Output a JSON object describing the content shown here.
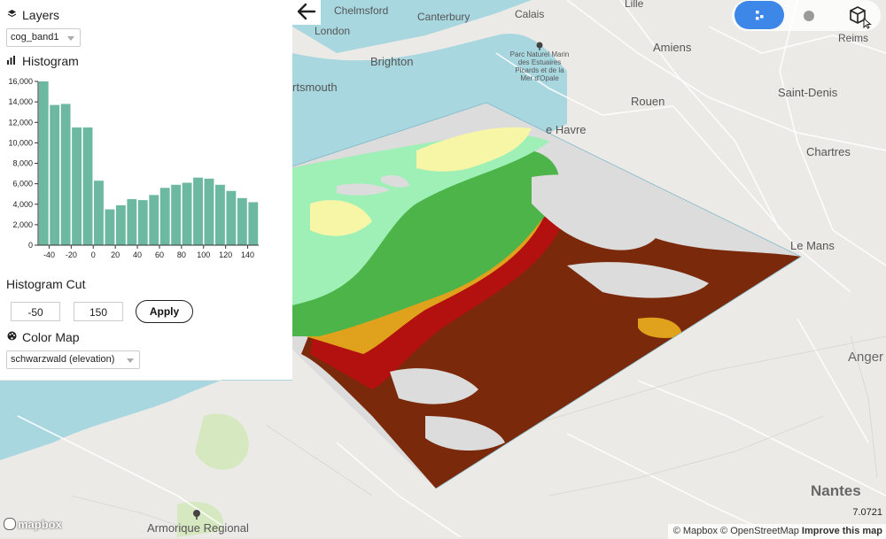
{
  "panel": {
    "layers_title": "Layers",
    "layer_selected": "cog_band1",
    "histogram_title": "Histogram",
    "cut_title": "Histogram Cut",
    "cut_min": "-50",
    "cut_max": "150",
    "apply_label": "Apply",
    "colormap_title": "Color Map",
    "colormap_selected": "schwarzwald (elevation)"
  },
  "chart_data": {
    "type": "bar",
    "title": "",
    "x": [
      -45,
      -35,
      -25,
      -15,
      -5,
      5,
      15,
      25,
      35,
      45,
      55,
      65,
      75,
      85,
      95,
      105,
      115,
      125,
      135,
      145
    ],
    "values": [
      16000,
      13700,
      13800,
      11500,
      11500,
      6300,
      3500,
      3900,
      4500,
      4400,
      4900,
      5600,
      5900,
      6100,
      6600,
      6500,
      5900,
      5300,
      4600,
      4200
    ],
    "xticks": [
      "-40",
      "-20",
      "0",
      "20",
      "40",
      "60",
      "80",
      "100",
      "120",
      "140"
    ],
    "yticks": [
      "0",
      "2,000",
      "4,000",
      "6,000",
      "8,000",
      "10,000",
      "12,000",
      "14,000",
      "16,000"
    ],
    "xlim": [
      -50,
      150
    ],
    "ylim": [
      0,
      16000
    ],
    "bar_color": "#6db8a1"
  },
  "map": {
    "labels": [
      {
        "name": "label-chelmsford",
        "text": "Chelmsford"
      },
      {
        "name": "label-canterbury",
        "text": "Canterbury"
      },
      {
        "name": "label-calais",
        "text": "Calais"
      },
      {
        "name": "label-lille",
        "text": "Lille"
      },
      {
        "name": "label-london",
        "text": "London"
      },
      {
        "name": "label-amiens",
        "text": "Amiens"
      },
      {
        "name": "label-reims",
        "text": "Reims"
      },
      {
        "name": "label-brighton",
        "text": "Brighton"
      },
      {
        "name": "label-portsmouth",
        "text": "rtsmouth"
      },
      {
        "name": "label-rouen",
        "text": "Rouen"
      },
      {
        "name": "label-saint-denis",
        "text": "Saint-Denis"
      },
      {
        "name": "label-le-havre",
        "text": "e Havre"
      },
      {
        "name": "label-chartres",
        "text": "Chartres"
      },
      {
        "name": "label-le-mans",
        "text": "Le Mans"
      },
      {
        "name": "label-angers",
        "text": "Anger"
      },
      {
        "name": "label-nantes",
        "text": "Nantes"
      },
      {
        "name": "label-armorique",
        "text": "Armorique Regional"
      }
    ],
    "park_label": [
      "Parc Naturel Marin",
      "des Estuaires",
      "Picards et de la",
      "Mer d'Opale"
    ],
    "zoom_readout": "7.0721",
    "attribution": "© Mapbox © OpenStreetMap",
    "improve_link": "Improve this map",
    "logo_text": "mapbox"
  },
  "colors": {
    "accent": "#3d87e8",
    "sea": "#a8d7e0",
    "land": "#eceae6",
    "elevation": [
      "#9ff0b6",
      "#f6f6a6",
      "#4cb448",
      "#e0a11c",
      "#b31010",
      "#7a2a0a",
      "#dcdcdc"
    ]
  },
  "toggles": [
    "cluster-mode-icon",
    "2d-mode-icon",
    "3d-mode-icon"
  ]
}
